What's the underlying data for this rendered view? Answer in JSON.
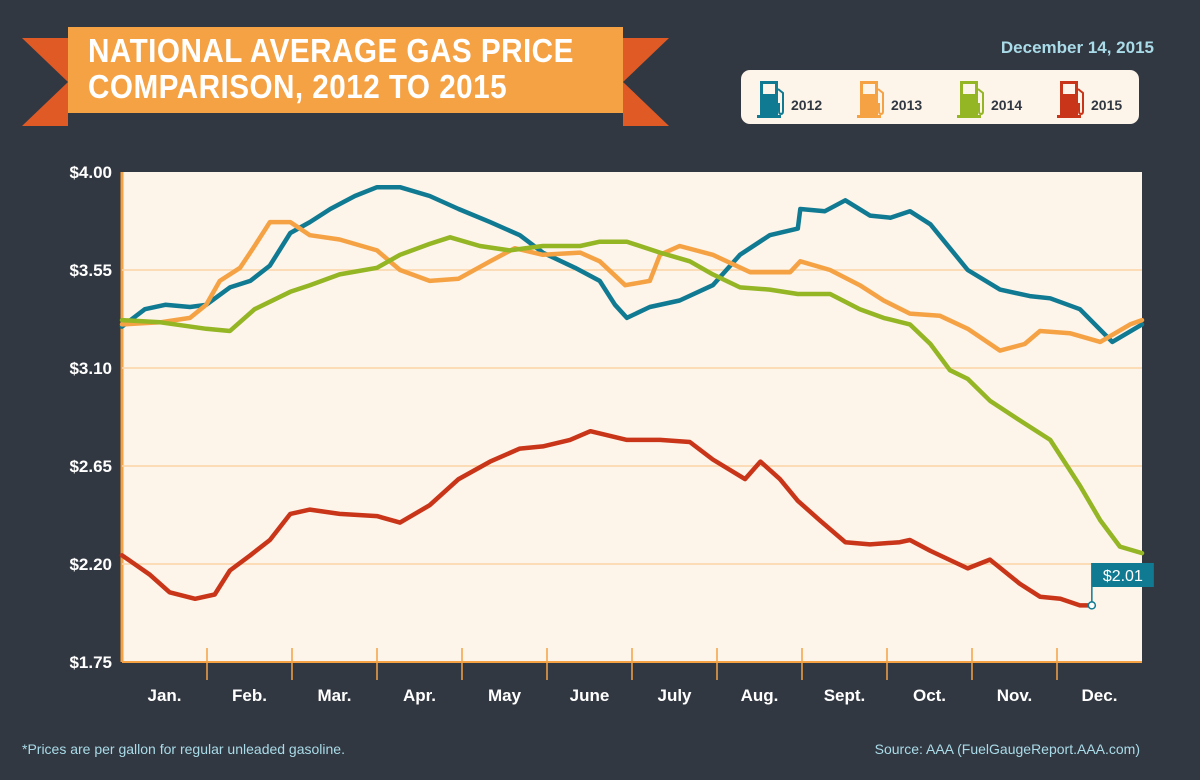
{
  "header": {
    "title_line1": "NATIONAL AVERAGE GAS PRICE",
    "title_line2": "COMPARISON, 2012 TO 2015",
    "date": "December 14, 2015"
  },
  "legend": {
    "items": [
      {
        "label": "2012",
        "color": "#107a93",
        "icon": "gas-pump-icon"
      },
      {
        "label": "2013",
        "color": "#f5a244",
        "icon": "gas-pump-icon"
      },
      {
        "label": "2014",
        "color": "#94b524",
        "icon": "gas-pump-icon"
      },
      {
        "label": "2015",
        "color": "#c93518",
        "icon": "gas-pump-icon"
      }
    ]
  },
  "footer": {
    "note": "*Prices are per gallon for regular unleaded gasoline.",
    "source": "Source: AAA (FuelGaugeReport.AAA.com)"
  },
  "chart_data": {
    "type": "line",
    "ylim": [
      1.75,
      4.0
    ],
    "xlim": [
      0,
      12
    ],
    "yticks": [
      "$4.00",
      "$3.55",
      "$3.10",
      "$2.65",
      "$2.20",
      "$1.75"
    ],
    "ytick_values": [
      4.0,
      3.55,
      3.1,
      2.65,
      2.2,
      1.75
    ],
    "categories": [
      "Jan.",
      "Feb.",
      "Mar.",
      "Apr.",
      "May",
      "June",
      "July",
      "Aug.",
      "Sept.",
      "Oct.",
      "Nov.",
      "Dec."
    ],
    "grid": true,
    "annotation": {
      "label": "$2.01",
      "x": 11.41,
      "y": 2.01
    },
    "series": [
      {
        "name": "2012",
        "color": "#107a93",
        "points": [
          [
            0,
            3.29
          ],
          [
            0.27,
            3.37
          ],
          [
            0.51,
            3.39
          ],
          [
            0.8,
            3.38
          ],
          [
            0.99,
            3.39
          ],
          [
            1.27,
            3.47
          ],
          [
            1.51,
            3.5
          ],
          [
            1.74,
            3.57
          ],
          [
            1.98,
            3.72
          ],
          [
            2.21,
            3.77
          ],
          [
            2.45,
            3.83
          ],
          [
            2.74,
            3.89
          ],
          [
            3.0,
            3.93
          ],
          [
            3.27,
            3.93
          ],
          [
            3.62,
            3.89
          ],
          [
            3.96,
            3.83
          ],
          [
            4.33,
            3.77
          ],
          [
            4.68,
            3.71
          ],
          [
            4.95,
            3.63
          ],
          [
            5.33,
            3.56
          ],
          [
            5.62,
            3.5
          ],
          [
            5.8,
            3.39
          ],
          [
            5.94,
            3.33
          ],
          [
            6.21,
            3.38
          ],
          [
            6.56,
            3.41
          ],
          [
            6.95,
            3.48
          ],
          [
            7.27,
            3.62
          ],
          [
            7.62,
            3.71
          ],
          [
            7.95,
            3.74
          ],
          [
            7.98,
            3.83
          ],
          [
            8.27,
            3.82
          ],
          [
            8.51,
            3.87
          ],
          [
            8.8,
            3.8
          ],
          [
            9.04,
            3.79
          ],
          [
            9.27,
            3.82
          ],
          [
            9.51,
            3.76
          ],
          [
            9.95,
            3.55
          ],
          [
            10.33,
            3.46
          ],
          [
            10.68,
            3.43
          ],
          [
            10.92,
            3.42
          ],
          [
            11.27,
            3.37
          ],
          [
            11.65,
            3.22
          ],
          [
            12,
            3.3
          ]
        ]
      },
      {
        "name": "2013",
        "color": "#f5a244",
        "points": [
          [
            0,
            3.3
          ],
          [
            0.45,
            3.31
          ],
          [
            0.8,
            3.33
          ],
          [
            0.99,
            3.39
          ],
          [
            1.15,
            3.5
          ],
          [
            1.39,
            3.56
          ],
          [
            1.56,
            3.66
          ],
          [
            1.74,
            3.77
          ],
          [
            1.98,
            3.77
          ],
          [
            2.21,
            3.71
          ],
          [
            2.56,
            3.69
          ],
          [
            3.0,
            3.64
          ],
          [
            3.27,
            3.55
          ],
          [
            3.62,
            3.5
          ],
          [
            3.96,
            3.51
          ],
          [
            4.33,
            3.59
          ],
          [
            4.62,
            3.65
          ],
          [
            4.95,
            3.62
          ],
          [
            5.39,
            3.63
          ],
          [
            5.62,
            3.59
          ],
          [
            5.92,
            3.48
          ],
          [
            6.21,
            3.5
          ],
          [
            6.33,
            3.62
          ],
          [
            6.56,
            3.66
          ],
          [
            6.95,
            3.62
          ],
          [
            7.39,
            3.54
          ],
          [
            7.86,
            3.54
          ],
          [
            7.98,
            3.59
          ],
          [
            8.33,
            3.55
          ],
          [
            8.68,
            3.48
          ],
          [
            8.96,
            3.41
          ],
          [
            9.27,
            3.35
          ],
          [
            9.62,
            3.34
          ],
          [
            9.95,
            3.28
          ],
          [
            10.33,
            3.18
          ],
          [
            10.62,
            3.21
          ],
          [
            10.8,
            3.27
          ],
          [
            11.15,
            3.26
          ],
          [
            11.51,
            3.22
          ],
          [
            11.86,
            3.3
          ],
          [
            12,
            3.32
          ]
        ]
      },
      {
        "name": "2014",
        "color": "#94b524",
        "points": [
          [
            0,
            3.32
          ],
          [
            0.45,
            3.31
          ],
          [
            0.99,
            3.28
          ],
          [
            1.27,
            3.27
          ],
          [
            1.56,
            3.37
          ],
          [
            1.98,
            3.45
          ],
          [
            2.21,
            3.48
          ],
          [
            2.56,
            3.53
          ],
          [
            3.0,
            3.56
          ],
          [
            3.27,
            3.62
          ],
          [
            3.62,
            3.67
          ],
          [
            3.86,
            3.7
          ],
          [
            4.21,
            3.66
          ],
          [
            4.56,
            3.64
          ],
          [
            4.95,
            3.66
          ],
          [
            5.39,
            3.66
          ],
          [
            5.62,
            3.68
          ],
          [
            5.94,
            3.68
          ],
          [
            6.33,
            3.63
          ],
          [
            6.68,
            3.59
          ],
          [
            6.95,
            3.53
          ],
          [
            7.27,
            3.47
          ],
          [
            7.62,
            3.46
          ],
          [
            7.95,
            3.44
          ],
          [
            8.33,
            3.44
          ],
          [
            8.68,
            3.37
          ],
          [
            8.96,
            3.33
          ],
          [
            9.27,
            3.3
          ],
          [
            9.51,
            3.21
          ],
          [
            9.74,
            3.09
          ],
          [
            9.95,
            3.05
          ],
          [
            10.21,
            2.95
          ],
          [
            10.56,
            2.86
          ],
          [
            10.92,
            2.77
          ],
          [
            11.27,
            2.56
          ],
          [
            11.51,
            2.4
          ],
          [
            11.74,
            2.28
          ],
          [
            12,
            2.25
          ]
        ]
      },
      {
        "name": "2015",
        "color": "#c93518",
        "points": [
          [
            0,
            2.24
          ],
          [
            0.33,
            2.15
          ],
          [
            0.56,
            2.07
          ],
          [
            0.86,
            2.04
          ],
          [
            1.09,
            2.06
          ],
          [
            1.27,
            2.17
          ],
          [
            1.51,
            2.24
          ],
          [
            1.74,
            2.31
          ],
          [
            1.98,
            2.43
          ],
          [
            2.21,
            2.45
          ],
          [
            2.56,
            2.43
          ],
          [
            3.0,
            2.42
          ],
          [
            3.27,
            2.39
          ],
          [
            3.62,
            2.47
          ],
          [
            3.96,
            2.59
          ],
          [
            4.33,
            2.67
          ],
          [
            4.68,
            2.73
          ],
          [
            4.95,
            2.74
          ],
          [
            5.27,
            2.77
          ],
          [
            5.51,
            2.81
          ],
          [
            5.94,
            2.77
          ],
          [
            6.33,
            2.77
          ],
          [
            6.68,
            2.76
          ],
          [
            6.95,
            2.68
          ],
          [
            7.33,
            2.59
          ],
          [
            7.51,
            2.67
          ],
          [
            7.74,
            2.59
          ],
          [
            7.95,
            2.49
          ],
          [
            8.21,
            2.4
          ],
          [
            8.51,
            2.3
          ],
          [
            8.8,
            2.29
          ],
          [
            9.15,
            2.3
          ],
          [
            9.27,
            2.31
          ],
          [
            9.51,
            2.26
          ],
          [
            9.95,
            2.18
          ],
          [
            10.21,
            2.22
          ],
          [
            10.56,
            2.11
          ],
          [
            10.8,
            2.05
          ],
          [
            11.04,
            2.04
          ],
          [
            11.27,
            2.01
          ],
          [
            11.41,
            2.01
          ]
        ]
      }
    ]
  }
}
